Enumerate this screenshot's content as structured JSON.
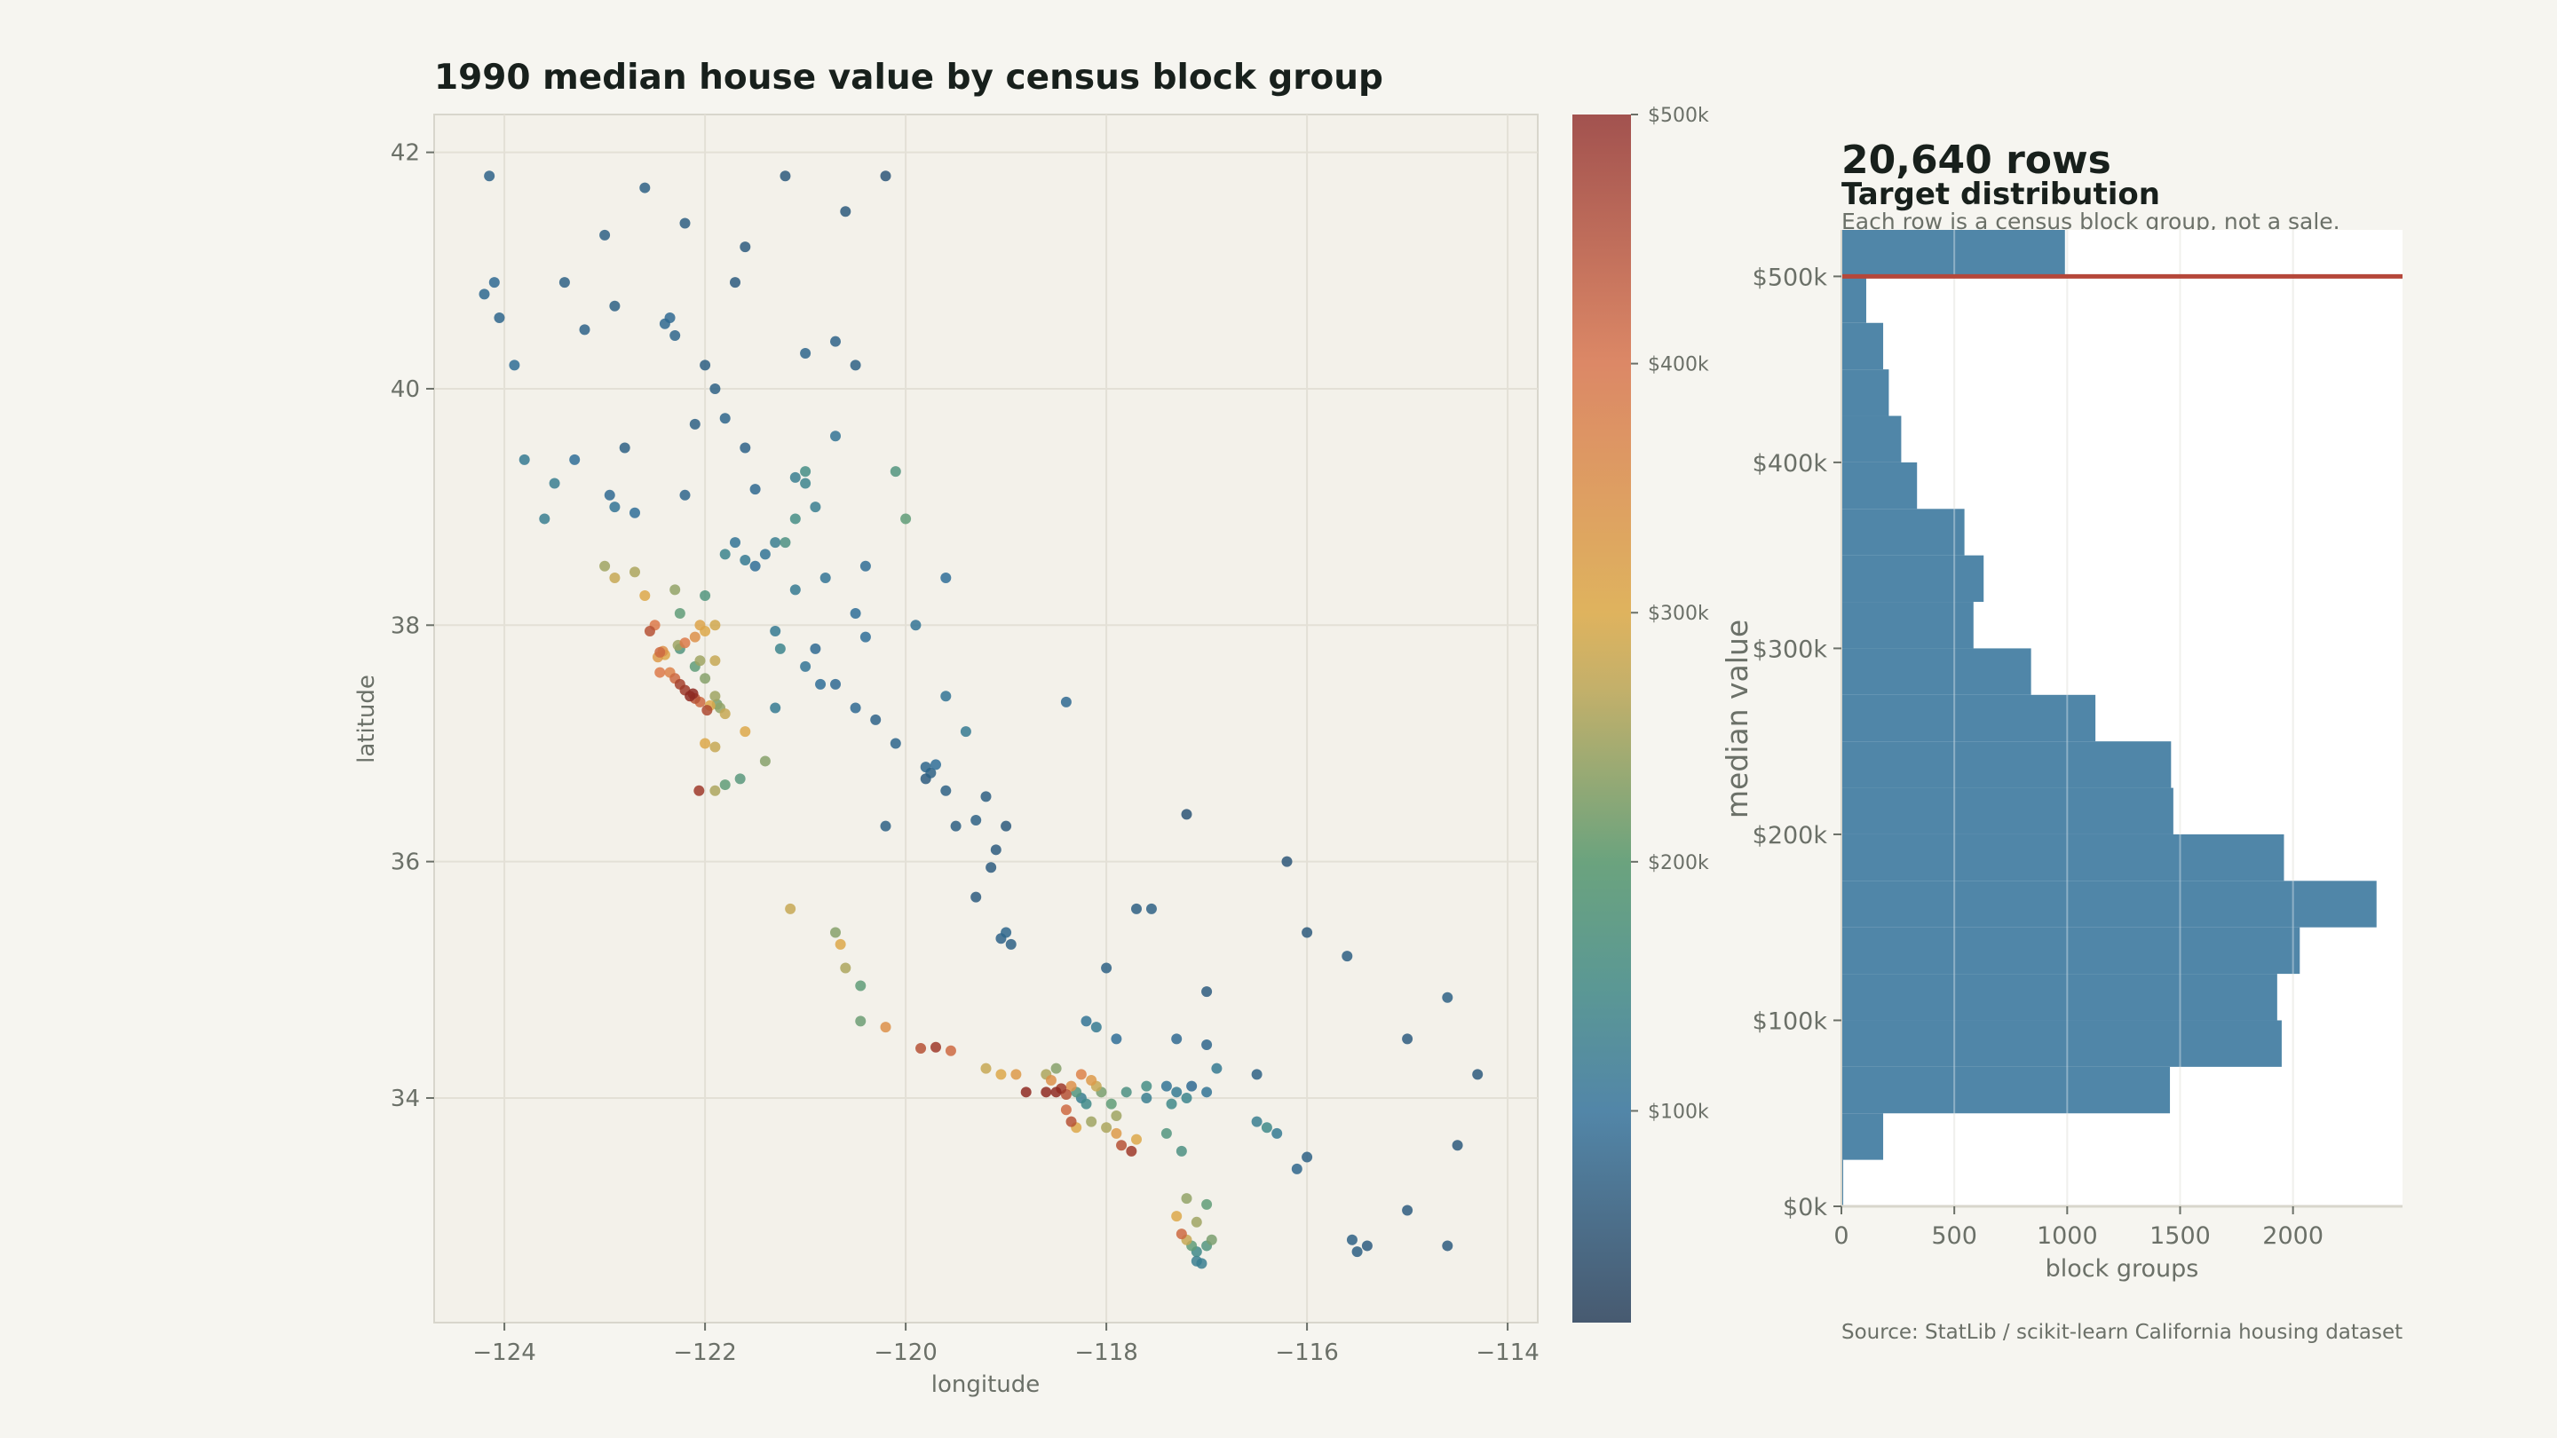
{
  "chart_data": [
    {
      "type": "scatter",
      "title": "1990 median house value by census block group",
      "xlabel": "longitude",
      "ylabel": "latitude",
      "xlim": [
        -124.7,
        -113.7
      ],
      "ylim": [
        32.1,
        42.32
      ],
      "grid": true,
      "xticks": [
        -124,
        -122,
        -120,
        -118,
        -116,
        -114
      ],
      "xtick_labels": [
        "−124",
        "−122",
        "−120",
        "−118",
        "−116",
        "−114"
      ],
      "yticks": [
        34,
        36,
        38,
        40,
        42
      ],
      "ytick_labels": [
        "34",
        "36",
        "38",
        "40",
        "42"
      ],
      "color_by": "median house value ($k)",
      "colorbar": {
        "range": [
          15,
          500
        ],
        "ticks": [
          100,
          200,
          300,
          400,
          500
        ],
        "tick_labels": [
          "$100k",
          "$200k",
          "$300k",
          "$400k",
          "$500k"
        ],
        "stops": [
          {
            "value": 15,
            "color": "#475a70"
          },
          {
            "value": 100,
            "color": "#5286a8"
          },
          {
            "value": 150,
            "color": "#5b9894"
          },
          {
            "value": 200,
            "color": "#6ba37e"
          },
          {
            "value": 270,
            "color": "#c4b06a"
          },
          {
            "value": 300,
            "color": "#dfb35e"
          },
          {
            "value": 400,
            "color": "#dc8866"
          },
          {
            "value": 500,
            "color": "#a2524f"
          }
        ],
        "point_stops": [
          {
            "value": 15,
            "color": "#2b4763"
          },
          {
            "value": 100,
            "color": "#2f6f98"
          },
          {
            "value": 150,
            "color": "#3f8a8a"
          },
          {
            "value": 200,
            "color": "#5f9c78"
          },
          {
            "value": 270,
            "color": "#b9a85a"
          },
          {
            "value": 300,
            "color": "#dca84a"
          },
          {
            "value": 400,
            "color": "#dc7a4a"
          },
          {
            "value": 500,
            "color": "#8e2a22"
          }
        ]
      },
      "points_lon_lat_valuek": [
        [
          -124.15,
          41.8,
          75
        ],
        [
          -124.2,
          40.8,
          85
        ],
        [
          -124.1,
          40.9,
          90
        ],
        [
          -124.05,
          40.6,
          80
        ],
        [
          -123.8,
          39.4,
          120
        ],
        [
          -123.5,
          39.2,
          130
        ],
        [
          -123.2,
          40.5,
          75
        ],
        [
          -122.4,
          40.55,
          85
        ],
        [
          -122.35,
          40.6,
          90
        ],
        [
          -122.3,
          40.45,
          80
        ],
        [
          -122.6,
          41.7,
          70
        ],
        [
          -122.2,
          41.4,
          65
        ],
        [
          -121.6,
          41.2,
          60
        ],
        [
          -120.6,
          41.5,
          55
        ],
        [
          -120.2,
          41.8,
          50
        ],
        [
          -121.0,
          40.3,
          80
        ],
        [
          -120.7,
          40.4,
          75
        ],
        [
          -122.1,
          39.7,
          70
        ],
        [
          -121.8,
          39.75,
          80
        ],
        [
          -121.6,
          39.5,
          75
        ],
        [
          -121.5,
          39.15,
          85
        ],
        [
          -121.0,
          39.2,
          140
        ],
        [
          -120.9,
          39.0,
          130
        ],
        [
          -120.1,
          39.3,
          180
        ],
        [
          -120.0,
          38.9,
          200
        ],
        [
          -121.7,
          40.9,
          60
        ],
        [
          -123.0,
          41.3,
          70
        ],
        [
          -123.9,
          40.2,
          95
        ],
        [
          -122.9,
          39.0,
          110
        ],
        [
          -122.7,
          38.95,
          100
        ],
        [
          -122.2,
          39.1,
          80
        ],
        [
          -121.4,
          38.6,
          110
        ],
        [
          -121.3,
          38.7,
          130
        ],
        [
          -121.5,
          38.5,
          100
        ],
        [
          -121.2,
          38.7,
          170
        ],
        [
          -121.1,
          38.9,
          160
        ],
        [
          -121.6,
          38.55,
          120
        ],
        [
          -121.8,
          38.6,
          140
        ],
        [
          -121.7,
          38.7,
          110
        ],
        [
          -120.8,
          38.4,
          110
        ],
        [
          -120.5,
          38.1,
          100
        ],
        [
          -122.7,
          38.45,
          260
        ],
        [
          -122.6,
          38.25,
          300
        ],
        [
          -122.3,
          38.3,
          240
        ],
        [
          -122.5,
          38.0,
          400
        ],
        [
          -122.55,
          37.95,
          450
        ],
        [
          -122.25,
          38.1,
          200
        ],
        [
          -122.0,
          38.25,
          180
        ],
        [
          -123.0,
          38.5,
          250
        ],
        [
          -122.9,
          38.4,
          280
        ],
        [
          -121.9,
          38.0,
          290
        ],
        [
          -122.05,
          38.0,
          310
        ],
        [
          -122.45,
          37.77,
          420
        ],
        [
          -122.42,
          37.78,
          350
        ],
        [
          -122.4,
          37.75,
          300
        ],
        [
          -122.47,
          37.73,
          330
        ],
        [
          -122.27,
          37.83,
          250
        ],
        [
          -122.25,
          37.8,
          180
        ],
        [
          -122.2,
          37.85,
          400
        ],
        [
          -122.1,
          37.9,
          350
        ],
        [
          -122.0,
          37.95,
          300
        ],
        [
          -122.05,
          37.7,
          250
        ],
        [
          -121.9,
          37.7,
          280
        ],
        [
          -122.1,
          37.65,
          200
        ],
        [
          -122.3,
          37.55,
          420
        ],
        [
          -122.2,
          37.45,
          480
        ],
        [
          -122.15,
          37.4,
          500
        ],
        [
          -122.1,
          37.38,
          450
        ],
        [
          -122.05,
          37.35,
          420
        ],
        [
          -121.95,
          37.32,
          300
        ],
        [
          -121.88,
          37.33,
          220
        ],
        [
          -121.85,
          37.3,
          240
        ],
        [
          -121.8,
          37.25,
          280
        ],
        [
          -121.9,
          37.4,
          250
        ],
        [
          -121.6,
          37.1,
          300
        ],
        [
          -122.0,
          37.0,
          300
        ],
        [
          -121.9,
          36.97,
          280
        ],
        [
          -121.8,
          36.65,
          200
        ],
        [
          -121.9,
          36.6,
          260
        ],
        [
          -121.65,
          36.7,
          190
        ],
        [
          -121.4,
          36.85,
          230
        ],
        [
          -122.35,
          37.6,
          380
        ],
        [
          -122.0,
          37.55,
          230
        ],
        [
          -122.25,
          37.5,
          470
        ],
        [
          -122.12,
          37.42,
          500
        ],
        [
          -121.98,
          37.28,
          460
        ],
        [
          -122.45,
          37.6,
          400
        ],
        [
          -122.06,
          36.6,
          480
        ],
        [
          -121.3,
          37.95,
          120
        ],
        [
          -121.25,
          37.8,
          140
        ],
        [
          -121.0,
          37.65,
          110
        ],
        [
          -120.85,
          37.5,
          100
        ],
        [
          -120.5,
          37.3,
          90
        ],
        [
          -120.1,
          37.0,
          80
        ],
        [
          -119.8,
          36.8,
          80
        ],
        [
          -119.75,
          36.75,
          70
        ],
        [
          -119.7,
          36.82,
          100
        ],
        [
          -119.8,
          36.7,
          60
        ],
        [
          -119.6,
          36.6,
          70
        ],
        [
          -119.3,
          36.35,
          70
        ],
        [
          -119.1,
          36.1,
          60
        ],
        [
          -119.0,
          35.4,
          80
        ],
        [
          -119.05,
          35.35,
          75
        ],
        [
          -118.95,
          35.3,
          70
        ],
        [
          -119.3,
          35.7,
          60
        ],
        [
          -119.5,
          36.3,
          65
        ],
        [
          -120.3,
          37.2,
          75
        ],
        [
          -120.7,
          37.5,
          90
        ],
        [
          -120.4,
          37.9,
          100
        ],
        [
          -119.9,
          38.0,
          110
        ],
        [
          -120.4,
          38.5,
          95
        ],
        [
          -119.2,
          36.55,
          65
        ],
        [
          -119.0,
          36.3,
          55
        ],
        [
          -119.15,
          35.95,
          60
        ],
        [
          -121.15,
          35.6,
          280
        ],
        [
          -120.7,
          35.4,
          230
        ],
        [
          -120.6,
          35.1,
          260
        ],
        [
          -120.45,
          34.95,
          200
        ],
        [
          -120.45,
          34.65,
          210
        ],
        [
          -119.85,
          34.42,
          450
        ],
        [
          -119.7,
          34.43,
          480
        ],
        [
          -119.55,
          34.4,
          420
        ],
        [
          -119.2,
          34.25,
          280
        ],
        [
          -119.05,
          34.2,
          300
        ],
        [
          -118.9,
          34.2,
          330
        ],
        [
          -120.65,
          35.3,
          300
        ],
        [
          -120.2,
          34.6,
          350
        ],
        [
          -118.5,
          34.05,
          500
        ],
        [
          -118.45,
          34.08,
          480
        ],
        [
          -118.4,
          34.03,
          450
        ],
        [
          -118.35,
          34.1,
          350
        ],
        [
          -118.3,
          34.05,
          180
        ],
        [
          -118.25,
          34.0,
          130
        ],
        [
          -118.2,
          33.95,
          150
        ],
        [
          -118.1,
          34.1,
          280
        ],
        [
          -118.15,
          34.15,
          330
        ],
        [
          -118.05,
          34.05,
          220
        ],
        [
          -118.4,
          33.9,
          420
        ],
        [
          -118.35,
          33.8,
          450
        ],
        [
          -118.3,
          33.75,
          300
        ],
        [
          -118.15,
          33.8,
          250
        ],
        [
          -118.0,
          33.75,
          260
        ],
        [
          -117.9,
          33.7,
          330
        ],
        [
          -117.85,
          33.6,
          450
        ],
        [
          -117.75,
          33.55,
          480
        ],
        [
          -117.7,
          33.65,
          300
        ],
        [
          -117.9,
          33.85,
          250
        ],
        [
          -118.6,
          34.2,
          260
        ],
        [
          -118.5,
          34.25,
          230
        ],
        [
          -118.55,
          34.15,
          350
        ],
        [
          -118.1,
          34.6,
          120
        ],
        [
          -117.9,
          34.5,
          100
        ],
        [
          -117.6,
          34.1,
          160
        ],
        [
          -117.4,
          34.1,
          110
        ],
        [
          -117.3,
          34.05,
          120
        ],
        [
          -117.2,
          34.0,
          140
        ],
        [
          -117.35,
          33.95,
          150
        ],
        [
          -117.15,
          34.1,
          90
        ],
        [
          -117.0,
          34.05,
          110
        ],
        [
          -117.4,
          33.7,
          180
        ],
        [
          -117.25,
          33.55,
          170
        ],
        [
          -117.6,
          34.0,
          130
        ],
        [
          -117.8,
          34.05,
          170
        ],
        [
          -118.25,
          34.2,
          380
        ],
        [
          -118.6,
          34.05,
          500
        ],
        [
          -118.8,
          34.05,
          500
        ],
        [
          -117.95,
          33.95,
          200
        ],
        [
          -117.2,
          33.15,
          240
        ],
        [
          -117.3,
          33.0,
          300
        ],
        [
          -117.25,
          32.85,
          420
        ],
        [
          -117.15,
          32.75,
          200
        ],
        [
          -117.1,
          32.7,
          150
        ],
        [
          -117.0,
          32.75,
          180
        ],
        [
          -117.05,
          32.6,
          130
        ],
        [
          -116.95,
          32.8,
          220
        ],
        [
          -117.1,
          32.95,
          250
        ],
        [
          -117.0,
          33.1,
          200
        ],
        [
          -117.2,
          32.8,
          280
        ],
        [
          -117.1,
          32.62,
          130
        ],
        [
          -116.5,
          33.8,
          130
        ],
        [
          -116.4,
          33.75,
          150
        ],
        [
          -116.3,
          33.7,
          120
        ],
        [
          -116.0,
          33.5,
          70
        ],
        [
          -115.55,
          32.8,
          70
        ],
        [
          -115.5,
          32.7,
          65
        ],
        [
          -115.4,
          32.75,
          60
        ],
        [
          -114.6,
          32.75,
          60
        ],
        [
          -114.6,
          34.85,
          70
        ],
        [
          -114.5,
          33.6,
          55
        ],
        [
          -115.0,
          34.5,
          60
        ],
        [
          -116.9,
          34.25,
          120
        ],
        [
          -117.3,
          34.5,
          90
        ],
        [
          -117.0,
          34.9,
          60
        ],
        [
          -116.5,
          34.2,
          70
        ],
        [
          -116.1,
          33.4,
          80
        ],
        [
          -115.6,
          35.2,
          65
        ],
        [
          -116.0,
          35.4,
          55
        ],
        [
          -117.7,
          35.6,
          65
        ],
        [
          -118.0,
          35.1,
          70
        ],
        [
          -118.2,
          34.65,
          110
        ],
        [
          -117.2,
          36.4,
          45
        ],
        [
          -118.4,
          37.35,
          90
        ],
        [
          -119.6,
          38.4,
          100
        ],
        [
          -115.0,
          33.05,
          60
        ],
        [
          -114.3,
          34.2,
          55
        ],
        [
          -117.0,
          34.45,
          80
        ],
        [
          -116.2,
          36.0,
          50
        ],
        [
          -117.55,
          35.6,
          70
        ],
        [
          -123.4,
          40.9,
          70
        ],
        [
          -122.9,
          40.7,
          70
        ],
        [
          -121.2,
          41.8,
          55
        ],
        [
          -120.5,
          40.2,
          70
        ],
        [
          -122.0,
          40.2,
          65
        ],
        [
          -121.9,
          40.0,
          70
        ],
        [
          -123.3,
          39.4,
          100
        ],
        [
          -123.6,
          38.9,
          130
        ],
        [
          -122.8,
          39.5,
          70
        ],
        [
          -120.7,
          39.6,
          110
        ],
        [
          -121.1,
          38.3,
          120
        ],
        [
          -120.9,
          37.8,
          90
        ],
        [
          -121.3,
          37.3,
          120
        ],
        [
          -120.2,
          36.3,
          70
        ],
        [
          -119.4,
          37.1,
          120
        ],
        [
          -119.6,
          37.4,
          110
        ],
        [
          -122.95,
          39.1,
          90
        ],
        [
          -121.0,
          39.3,
          160
        ],
        [
          -121.1,
          39.25,
          130
        ]
      ]
    },
    {
      "type": "bar",
      "orientation": "horizontal",
      "title": "20,640 rows",
      "subtitle": "Target distribution",
      "note": "Each row is a census block group, not a sale.",
      "xlabel": "block groups",
      "ylabel": "median value",
      "xlim": [
        0,
        2485
      ],
      "ylim": [
        0,
        525
      ],
      "grid": true,
      "xticks": [
        0,
        500,
        1000,
        1500,
        2000
      ],
      "xtick_labels": [
        "0",
        "500",
        "1000",
        "1500",
        "2000"
      ],
      "yticks": [
        0,
        100,
        200,
        300,
        400,
        500
      ],
      "ytick_labels": [
        "$0k",
        "$100k",
        "$200k",
        "$300k",
        "$400k",
        "$500k"
      ],
      "bin_width_k": 25,
      "bin_starts_k": [
        0,
        25,
        50,
        75,
        100,
        125,
        150,
        175,
        200,
        225,
        250,
        275,
        300,
        325,
        350,
        375,
        400,
        425,
        450,
        475,
        500
      ],
      "counts": [
        8,
        185,
        1455,
        1950,
        1930,
        2030,
        2370,
        1960,
        1470,
        1460,
        1125,
        840,
        585,
        630,
        545,
        335,
        265,
        210,
        185,
        110,
        990
      ],
      "reference_line": {
        "value": 500,
        "color": "#b5473a"
      },
      "bar_color": "#5086a8"
    }
  ],
  "footer": {
    "source": "Source: StatLib / scikit-learn California housing dataset"
  }
}
